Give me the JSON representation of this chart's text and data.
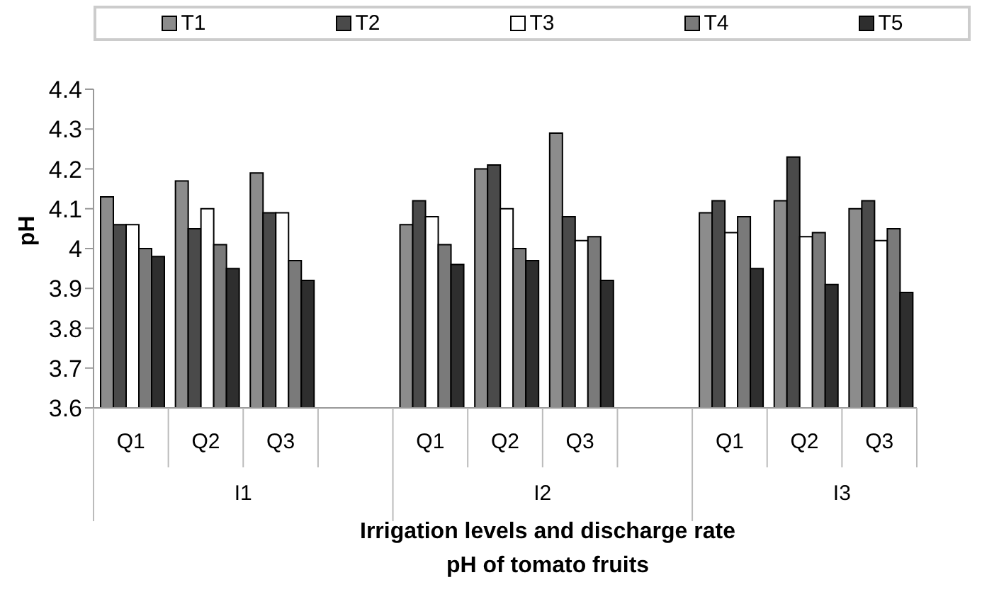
{
  "chart_data": {
    "type": "bar",
    "title": "pH of tomato fruits",
    "xlabel": "Irrigation levels and discharge rate",
    "ylabel": "pH",
    "categories": [
      "Q1",
      "Q2",
      "Q3",
      null,
      "Q1",
      "Q2",
      "Q3",
      null,
      "Q1",
      "Q2",
      "Q3"
    ],
    "annotations": [
      "I1",
      "I2",
      "I3"
    ],
    "series": [
      {
        "name": "T1",
        "color": "#8c8c8c",
        "values": [
          4.13,
          4.17,
          4.19,
          null,
          4.06,
          4.2,
          4.29,
          null,
          4.09,
          4.12,
          4.1
        ]
      },
      {
        "name": "T2",
        "color": "#4a4a4a",
        "values": [
          4.06,
          4.05,
          4.09,
          null,
          4.12,
          4.21,
          4.08,
          null,
          4.12,
          4.23,
          4.12
        ]
      },
      {
        "name": "T3",
        "color": "#ffffff",
        "values": [
          4.06,
          4.1,
          4.09,
          null,
          4.08,
          4.1,
          4.02,
          null,
          4.04,
          4.03,
          4.02
        ]
      },
      {
        "name": "T4",
        "color": "#7a7a7a",
        "values": [
          4.0,
          4.01,
          3.97,
          null,
          4.01,
          4.0,
          4.03,
          null,
          4.08,
          4.04,
          4.05
        ]
      },
      {
        "name": "T5",
        "color": "#2e2e2e",
        "values": [
          3.98,
          3.95,
          3.92,
          null,
          3.96,
          3.97,
          3.92,
          null,
          3.95,
          3.91,
          3.89
        ]
      }
    ],
    "ylim": [
      3.6,
      4.4
    ],
    "yticks": [
      3.6,
      3.7,
      3.8,
      3.9,
      4,
      4.1,
      4.2,
      4.3,
      4.4
    ],
    "legend": "top"
  }
}
